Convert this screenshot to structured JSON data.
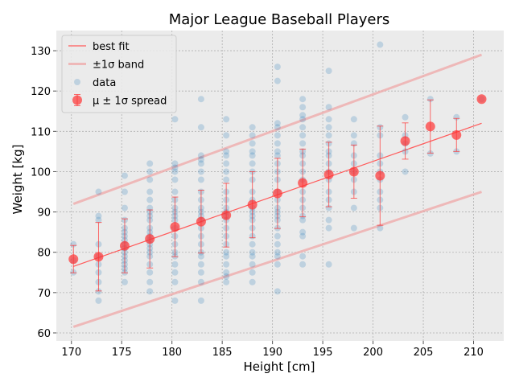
{
  "chart_data": {
    "type": "scatter",
    "title": "Major League Baseball Players",
    "xlabel": "Height [cm]",
    "ylabel": "Weight [kg]",
    "xlim": [
      168.5,
      213
    ],
    "ylim": [
      58,
      135
    ],
    "xticks": [
      170,
      175,
      180,
      185,
      190,
      195,
      200,
      205,
      210
    ],
    "yticks": [
      60,
      70,
      80,
      90,
      100,
      110,
      120,
      130
    ],
    "grid": true,
    "legend_position": "top-left",
    "legend": [
      {
        "label": "best fit",
        "kind": "line"
      },
      {
        "label": "±1σ band",
        "kind": "band"
      },
      {
        "label": "data",
        "kind": "scatter"
      },
      {
        "label": "μ ± 1σ spread",
        "kind": "errorbar"
      }
    ],
    "colors": {
      "background": "#ebebeb",
      "data": "#1f77b4",
      "fit": "#ff5a5a",
      "band": "#f0a8a8",
      "spread": "#ff3333"
    },
    "best_fit": {
      "x": [
        170.2,
        210.8
      ],
      "y": [
        76.5,
        112
      ]
    },
    "band_upper": {
      "x": [
        170.2,
        210.8
      ],
      "y": [
        92,
        129
      ]
    },
    "band_lower": {
      "x": [
        170.2,
        210.8
      ],
      "y": [
        61.5,
        95
      ]
    },
    "data_columns": [
      {
        "x": 170.2,
        "y": [
          75,
          78,
          82
        ]
      },
      {
        "x": 172.7,
        "y": [
          68,
          70.3,
          72.6,
          75,
          77,
          79,
          82,
          88,
          89,
          95
        ]
      },
      {
        "x": 175.3,
        "y": [
          72.6,
          75,
          76,
          77,
          78,
          79,
          80,
          81,
          82,
          83,
          84,
          85,
          86,
          88,
          91,
          95,
          99
        ]
      },
      {
        "x": 177.8,
        "y": [
          70.3,
          72.6,
          75,
          77,
          79,
          80,
          81,
          82,
          83,
          84,
          85,
          86,
          88,
          89,
          90,
          91,
          93,
          95,
          98,
          100,
          102
        ]
      },
      {
        "x": 180.3,
        "y": [
          68,
          72.6,
          75,
          77,
          79,
          80,
          82,
          84,
          86,
          88,
          89,
          90,
          91,
          93,
          95,
          98,
          100,
          101,
          102,
          113
        ]
      },
      {
        "x": 182.9,
        "y": [
          68,
          72.6,
          75,
          77,
          79,
          80,
          82,
          84,
          86,
          88,
          89,
          90,
          91,
          93,
          95,
          98,
          100,
          102,
          103,
          104,
          111,
          118
        ]
      },
      {
        "x": 185.4,
        "y": [
          72.6,
          74,
          75,
          77,
          79,
          80,
          82,
          84,
          86,
          88,
          89,
          90,
          91,
          93,
          95,
          98,
          100,
          102,
          104,
          105,
          109,
          113
        ]
      },
      {
        "x": 188.0,
        "y": [
          72.6,
          75,
          77,
          79,
          80,
          82,
          84,
          86,
          88,
          89,
          90,
          91,
          93,
          95,
          98,
          100,
          102,
          104,
          105,
          107,
          109,
          111
        ]
      },
      {
        "x": 190.5,
        "y": [
          70.3,
          77,
          79,
          80,
          82,
          84,
          86,
          88,
          89,
          90,
          91,
          93,
          95,
          98,
          100,
          102,
          104,
          105,
          107,
          109,
          111,
          112,
          122.5,
          126
        ]
      },
      {
        "x": 193.0,
        "y": [
          77,
          79,
          84,
          85,
          88,
          89,
          91,
          93,
          95,
          98,
          100,
          102,
          104,
          105,
          107,
          109,
          111,
          113,
          114,
          116,
          118
        ]
      },
      {
        "x": 195.6,
        "y": [
          77,
          86,
          88,
          91,
          93,
          95,
          98,
          100,
          102,
          104,
          105,
          107,
          109,
          111,
          113,
          116,
          125
        ]
      },
      {
        "x": 198.1,
        "y": [
          86,
          91,
          95,
          98,
          100,
          102,
          104,
          107,
          109,
          113
        ]
      },
      {
        "x": 200.7,
        "y": [
          86,
          91,
          93,
          95,
          98,
          100,
          102,
          104,
          109,
          111
        ]
      },
      {
        "x": 203.2,
        "y": [
          100,
          105,
          107,
          109,
          113.5
        ]
      },
      {
        "x": 205.7,
        "y": [
          104.5,
          118
        ]
      },
      {
        "x": 208.3,
        "y": [
          105,
          113.5
        ]
      },
      {
        "x": 210.8,
        "y": [
          118
        ]
      },
      {
        "x": 200.7,
        "y": [
          131.5
        ]
      }
    ],
    "spread": [
      {
        "x": 170.2,
        "mean": 78.3,
        "sd": 3.4
      },
      {
        "x": 172.7,
        "mean": 78.9,
        "sd": 8.5
      },
      {
        "x": 175.3,
        "mean": 81.6,
        "sd": 6.7
      },
      {
        "x": 177.8,
        "mean": 83.3,
        "sd": 7.2
      },
      {
        "x": 180.3,
        "mean": 86.3,
        "sd": 7.4
      },
      {
        "x": 182.9,
        "mean": 87.6,
        "sd": 7.8
      },
      {
        "x": 185.4,
        "mean": 89.2,
        "sd": 7.9
      },
      {
        "x": 188.0,
        "mean": 91.8,
        "sd": 8.2
      },
      {
        "x": 190.5,
        "mean": 94.6,
        "sd": 8.7
      },
      {
        "x": 193.0,
        "mean": 97.2,
        "sd": 8.4
      },
      {
        "x": 195.6,
        "mean": 99.3,
        "sd": 8.0
      },
      {
        "x": 198.1,
        "mean": 100.0,
        "sd": 6.6
      },
      {
        "x": 200.7,
        "mean": 99.0,
        "sd": 12.3
      },
      {
        "x": 203.2,
        "mean": 107.6,
        "sd": 4.5
      },
      {
        "x": 205.7,
        "mean": 111.2,
        "sd": 6.6
      },
      {
        "x": 208.3,
        "mean": 109.1,
        "sd": 4.1
      },
      {
        "x": 210.8,
        "mean": 118.0,
        "sd": 0
      }
    ]
  }
}
